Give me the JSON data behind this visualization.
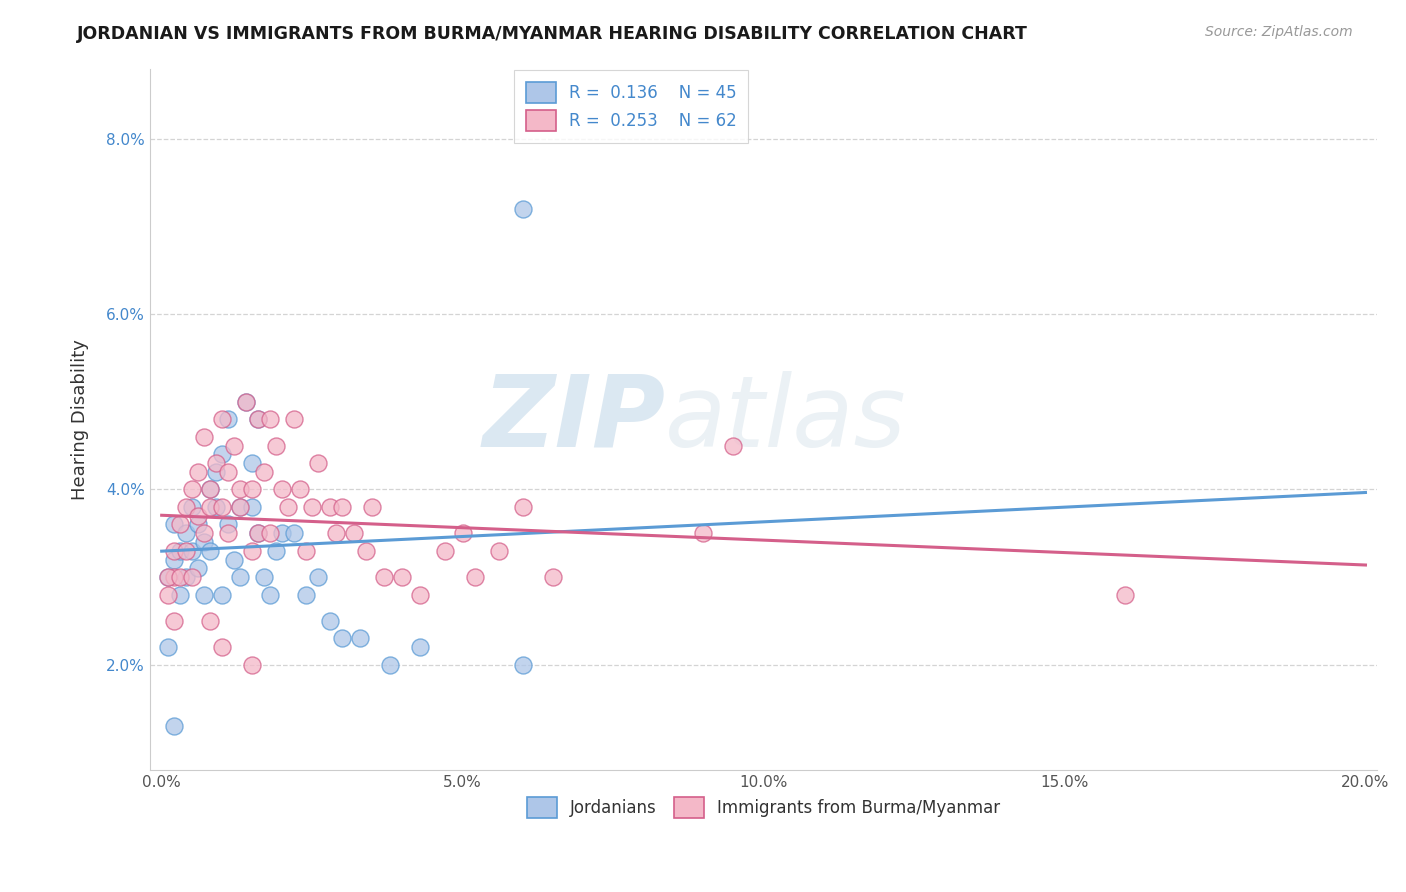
{
  "title": "JORDANIAN VS IMMIGRANTS FROM BURMA/MYANMAR HEARING DISABILITY CORRELATION CHART",
  "source": "Source: ZipAtlas.com",
  "ylabel": "Hearing Disability",
  "legend_labels": [
    "Jordanians",
    "Immigrants from Burma/Myanmar"
  ],
  "r1": 0.136,
  "n1": 45,
  "r2": 0.253,
  "n2": 62,
  "color1": "#aec6e8",
  "color2": "#f4b8c8",
  "line_color1": "#5b9bd5",
  "line_color2": "#d45f8a",
  "xlim": [
    -0.002,
    0.202
  ],
  "ylim": [
    0.008,
    0.088
  ],
  "xtick_vals": [
    0.0,
    0.05,
    0.1,
    0.15,
    0.2
  ],
  "xtick_labels": [
    "0.0%",
    "5.0%",
    "10.0%",
    "15.0%",
    "20.0%"
  ],
  "ytick_vals": [
    0.02,
    0.04,
    0.06,
    0.08
  ],
  "ytick_labels": [
    "2.0%",
    "4.0%",
    "6.0%",
    "8.0%"
  ],
  "watermark_zip": "ZIP",
  "watermark_atlas": "atlas",
  "background_color": "#ffffff",
  "grid_color": "#d0d0d0",
  "scatter1_x": [
    0.001,
    0.002,
    0.002,
    0.003,
    0.003,
    0.004,
    0.004,
    0.005,
    0.005,
    0.006,
    0.006,
    0.007,
    0.007,
    0.008,
    0.008,
    0.009,
    0.009,
    0.01,
    0.01,
    0.011,
    0.011,
    0.012,
    0.013,
    0.013,
    0.014,
    0.015,
    0.015,
    0.016,
    0.016,
    0.017,
    0.018,
    0.019,
    0.02,
    0.022,
    0.024,
    0.026,
    0.028,
    0.03,
    0.033,
    0.038,
    0.043,
    0.06,
    0.06,
    0.002,
    0.001
  ],
  "scatter1_y": [
    0.03,
    0.032,
    0.036,
    0.028,
    0.033,
    0.035,
    0.03,
    0.033,
    0.038,
    0.031,
    0.036,
    0.034,
    0.028,
    0.04,
    0.033,
    0.038,
    0.042,
    0.028,
    0.044,
    0.036,
    0.048,
    0.032,
    0.03,
    0.038,
    0.05,
    0.038,
    0.043,
    0.035,
    0.048,
    0.03,
    0.028,
    0.033,
    0.035,
    0.035,
    0.028,
    0.03,
    0.025,
    0.023,
    0.023,
    0.02,
    0.022,
    0.02,
    0.072,
    0.013,
    0.022
  ],
  "scatter2_x": [
    0.001,
    0.002,
    0.002,
    0.003,
    0.004,
    0.004,
    0.005,
    0.006,
    0.006,
    0.007,
    0.007,
    0.008,
    0.008,
    0.009,
    0.01,
    0.01,
    0.011,
    0.011,
    0.012,
    0.013,
    0.013,
    0.014,
    0.015,
    0.015,
    0.016,
    0.016,
    0.017,
    0.018,
    0.018,
    0.019,
    0.02,
    0.021,
    0.022,
    0.023,
    0.024,
    0.025,
    0.026,
    0.028,
    0.029,
    0.03,
    0.032,
    0.034,
    0.035,
    0.037,
    0.04,
    0.043,
    0.047,
    0.05,
    0.052,
    0.056,
    0.06,
    0.065,
    0.09,
    0.095,
    0.16,
    0.001,
    0.002,
    0.003,
    0.005,
    0.008,
    0.01,
    0.015
  ],
  "scatter2_y": [
    0.028,
    0.033,
    0.03,
    0.036,
    0.038,
    0.033,
    0.04,
    0.037,
    0.042,
    0.035,
    0.046,
    0.038,
    0.04,
    0.043,
    0.038,
    0.048,
    0.042,
    0.035,
    0.045,
    0.04,
    0.038,
    0.05,
    0.033,
    0.04,
    0.035,
    0.048,
    0.042,
    0.035,
    0.048,
    0.045,
    0.04,
    0.038,
    0.048,
    0.04,
    0.033,
    0.038,
    0.043,
    0.038,
    0.035,
    0.038,
    0.035,
    0.033,
    0.038,
    0.03,
    0.03,
    0.028,
    0.033,
    0.035,
    0.03,
    0.033,
    0.038,
    0.03,
    0.035,
    0.045,
    0.028,
    0.03,
    0.025,
    0.03,
    0.03,
    0.025,
    0.022,
    0.02
  ]
}
